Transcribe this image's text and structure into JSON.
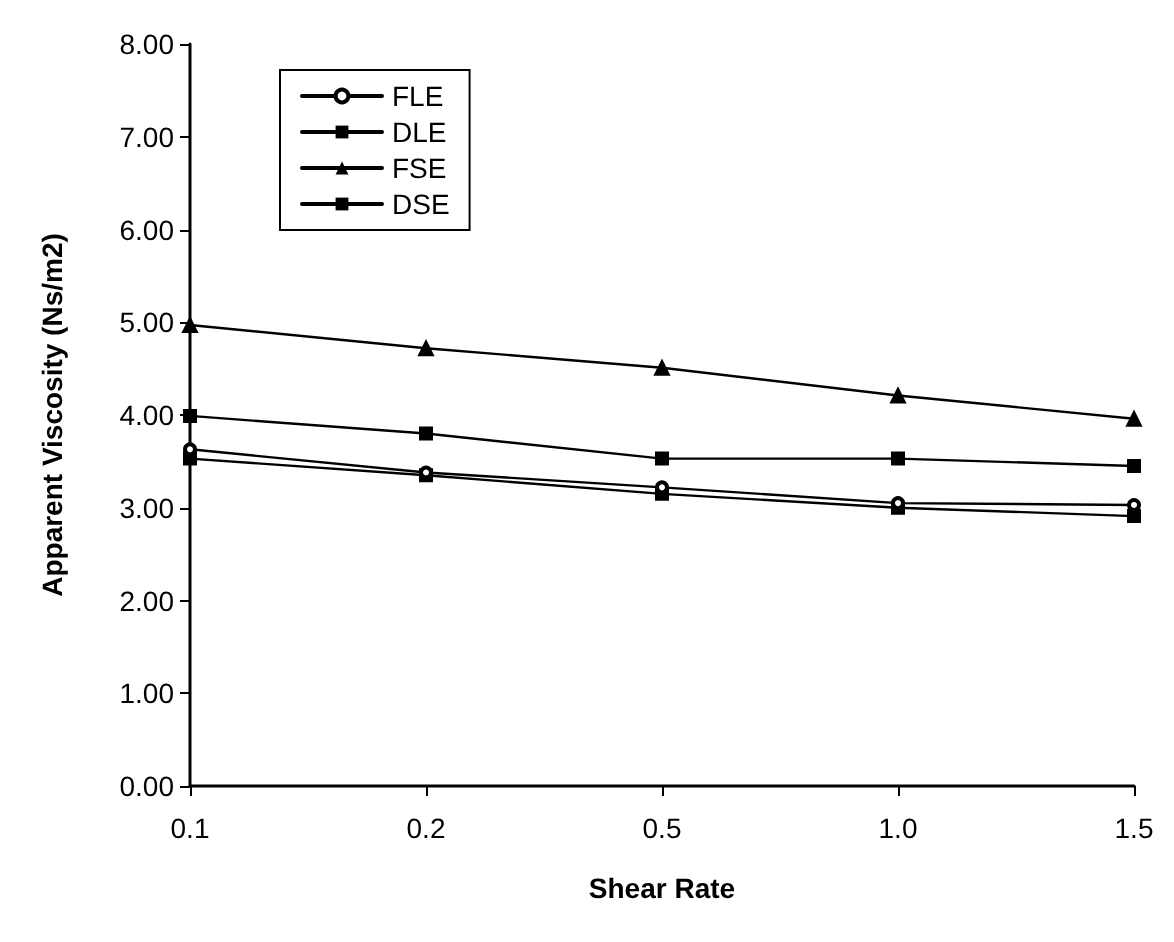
{
  "chart_data": {
    "type": "line",
    "xlabel": "Shear Rate",
    "ylabel": "Apparent Viscosity (Ns/m2)",
    "categories": [
      "0.1",
      "0.2",
      "0.5",
      "1.0",
      "1.5"
    ],
    "series": [
      {
        "name": "FLE",
        "color": "#000000",
        "marker": "circle",
        "values": [
          3.63,
          3.38,
          3.22,
          3.05,
          3.03
        ]
      },
      {
        "name": "DLE",
        "color": "#000000",
        "marker": "square",
        "values": [
          3.53,
          3.35,
          3.15,
          3.0,
          2.91
        ]
      },
      {
        "name": "FSE",
        "color": "#000000",
        "marker": "triangle",
        "values": [
          4.97,
          4.72,
          4.51,
          4.21,
          3.96
        ]
      },
      {
        "name": "DSE",
        "color": "#000000",
        "marker": "square",
        "values": [
          3.99,
          3.8,
          3.53,
          3.53,
          3.45
        ]
      }
    ],
    "ylim": [
      0,
      8
    ],
    "yticks": [
      {
        "value": 0,
        "label": "0.00"
      },
      {
        "value": 1,
        "label": "1.00"
      },
      {
        "value": 2,
        "label": "2.00"
      },
      {
        "value": 3,
        "label": "3.00"
      },
      {
        "value": 4,
        "label": "4.00"
      },
      {
        "value": 5,
        "label": "5.00"
      },
      {
        "value": 6,
        "label": "6.00"
      },
      {
        "value": 7,
        "label": "7.00"
      },
      {
        "value": 8,
        "label": "8.00"
      }
    ],
    "grid": false,
    "legend": "top left",
    "line_style": "solid"
  }
}
